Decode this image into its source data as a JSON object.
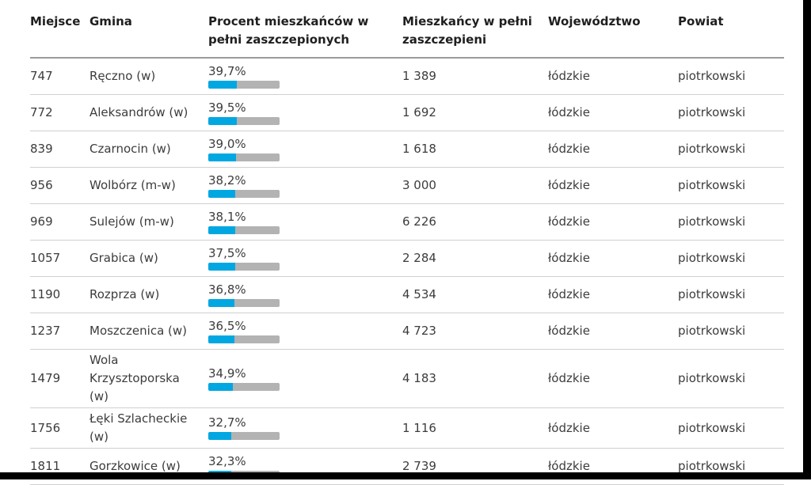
{
  "colors": {
    "bar_fill": "#00a7e1",
    "bar_track": "#b3b3b3",
    "header_rule": "#9b9b9b",
    "row_rule": "#d0d0d0",
    "frame": "#000000",
    "header_text": "#1f1f1f",
    "cell_text": "#3c3c3c"
  },
  "chart_data": {
    "type": "table",
    "columns": [
      "Miejsce",
      "Gmina",
      "Procent mieszkańców w pełni zaszczepionych",
      "Mieszkańcy w pełni zaszczepieni",
      "Województwo",
      "Powiat"
    ],
    "rows": [
      {
        "miejsce": "747",
        "gmina": "Ręczno (w)",
        "procent": "39,7%",
        "procent_value": 39.7,
        "mieszkancy": "1 389",
        "wojewodztwo": "łódzkie",
        "powiat": "piotrkowski"
      },
      {
        "miejsce": "772",
        "gmina": "Aleksandrów (w)",
        "procent": "39,5%",
        "procent_value": 39.5,
        "mieszkancy": "1 692",
        "wojewodztwo": "łódzkie",
        "powiat": "piotrkowski"
      },
      {
        "miejsce": "839",
        "gmina": "Czarnocin (w)",
        "procent": "39,0%",
        "procent_value": 39.0,
        "mieszkancy": "1 618",
        "wojewodztwo": "łódzkie",
        "powiat": "piotrkowski"
      },
      {
        "miejsce": "956",
        "gmina": "Wolbórz (m-w)",
        "procent": "38,2%",
        "procent_value": 38.2,
        "mieszkancy": "3 000",
        "wojewodztwo": "łódzkie",
        "powiat": "piotrkowski"
      },
      {
        "miejsce": "969",
        "gmina": "Sulejów (m-w)",
        "procent": "38,1%",
        "procent_value": 38.1,
        "mieszkancy": "6 226",
        "wojewodztwo": "łódzkie",
        "powiat": "piotrkowski"
      },
      {
        "miejsce": "1057",
        "gmina": "Grabica (w)",
        "procent": "37,5%",
        "procent_value": 37.5,
        "mieszkancy": "2 284",
        "wojewodztwo": "łódzkie",
        "powiat": "piotrkowski"
      },
      {
        "miejsce": "1190",
        "gmina": "Rozprza (w)",
        "procent": "36,8%",
        "procent_value": 36.8,
        "mieszkancy": "4 534",
        "wojewodztwo": "łódzkie",
        "powiat": "piotrkowski"
      },
      {
        "miejsce": "1237",
        "gmina": "Moszczenica (w)",
        "procent": "36,5%",
        "procent_value": 36.5,
        "mieszkancy": "4 723",
        "wojewodztwo": "łódzkie",
        "powiat": "piotrkowski"
      },
      {
        "miejsce": "1479",
        "gmina": "Wola Krzysztoporska (w)",
        "procent": "34,9%",
        "procent_value": 34.9,
        "mieszkancy": "4 183",
        "wojewodztwo": "łódzkie",
        "powiat": "piotrkowski"
      },
      {
        "miejsce": "1756",
        "gmina": "Łęki Szlacheckie (w)",
        "procent": "32,7%",
        "procent_value": 32.7,
        "mieszkancy": "1 116",
        "wojewodztwo": "łódzkie",
        "powiat": "piotrkowski"
      },
      {
        "miejsce": "1811",
        "gmina": "Gorzkowice (w)",
        "procent": "32,3%",
        "procent_value": 32.3,
        "mieszkancy": "2 739",
        "wojewodztwo": "łódzkie",
        "powiat": "piotrkowski"
      }
    ]
  }
}
